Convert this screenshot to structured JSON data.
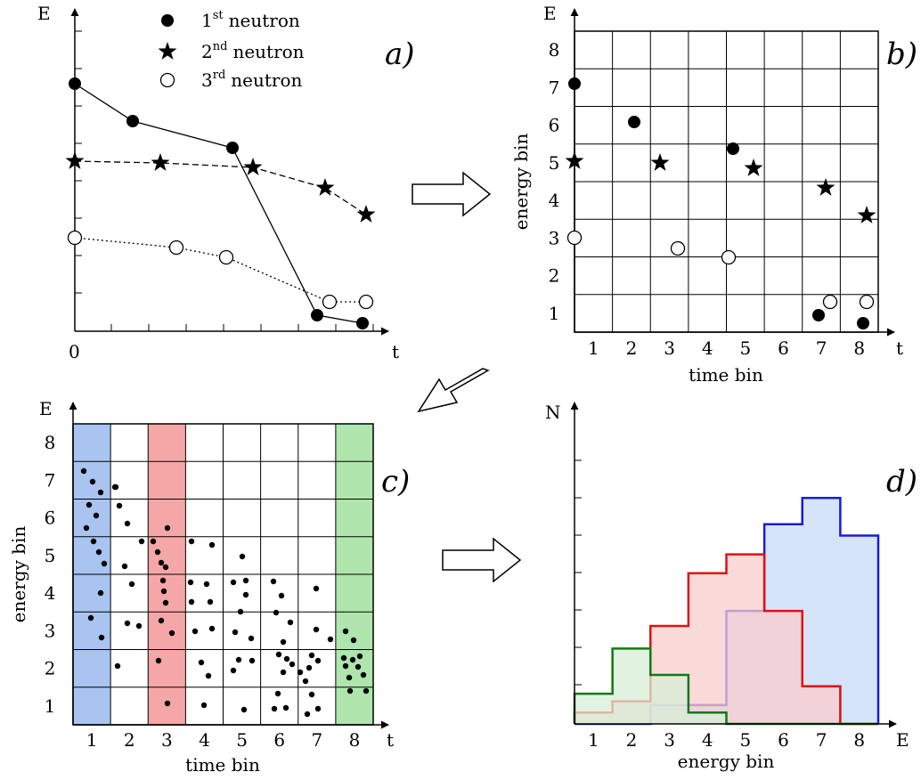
{
  "panels": {
    "a": {
      "label": "a)",
      "y_axis_label": "E",
      "x_axis_label": "t",
      "origin_label": "0",
      "legend": [
        {
          "text": "neutron",
          "sup": "st",
          "index": "1",
          "marker": "filled-circle"
        },
        {
          "text": "neutron",
          "sup": "nd",
          "index": "2",
          "marker": "star"
        },
        {
          "text": "neutron",
          "sup": "rd",
          "index": "3",
          "marker": "open-circle"
        }
      ]
    },
    "b": {
      "label": "b)",
      "y_axis_label": "E",
      "x_axis_label": "t",
      "x_title": "time bin",
      "y_title": "energy bin",
      "x_ticks": [
        "1",
        "2",
        "3",
        "4",
        "5",
        "6",
        "7",
        "8"
      ],
      "y_ticks": [
        "1",
        "2",
        "3",
        "4",
        "5",
        "6",
        "7",
        "8"
      ]
    },
    "c": {
      "label": "c)",
      "y_axis_label": "E",
      "x_axis_label": "t",
      "x_title": "time bin",
      "y_title": "energy bin",
      "x_ticks": [
        "1",
        "2",
        "3",
        "4",
        "5",
        "6",
        "7",
        "8"
      ],
      "y_ticks": [
        "1",
        "2",
        "3",
        "4",
        "5",
        "6",
        "7",
        "8"
      ],
      "highlight_colors": {
        "col1": "#a9c4f0",
        "col3": "#f5a7a7",
        "col8": "#aee6ae"
      }
    },
    "d": {
      "label": "d)",
      "y_axis_label": "N",
      "x_axis_label": "E",
      "x_title": "energy bin",
      "x_ticks": [
        "1",
        "2",
        "3",
        "4",
        "5",
        "6",
        "7",
        "8"
      ]
    }
  },
  "chart_data": {
    "type": "bar",
    "xlabel": "energy bin",
    "ylabel": "N",
    "categories": [
      "1",
      "2",
      "3",
      "4",
      "5",
      "6",
      "7",
      "8"
    ],
    "series": [
      {
        "color": "#1a1adc",
        "fill": "#c8dbf7",
        "values": [
          0,
          0,
          0.5,
          0.5,
          3,
          5.3,
          6,
          5
        ]
      },
      {
        "color": "#e01010",
        "fill": "#f8cccc",
        "values": [
          0.3,
          0.6,
          2.6,
          4,
          4.5,
          3,
          1,
          0
        ]
      },
      {
        "color": "#127a12",
        "fill": "#d8efd8",
        "values": [
          0.8,
          2,
          1.3,
          0.3,
          0,
          0,
          0,
          0
        ]
      }
    ]
  },
  "colors": {
    "arrow_fill": "#ffffff",
    "stroke": "#000000"
  }
}
